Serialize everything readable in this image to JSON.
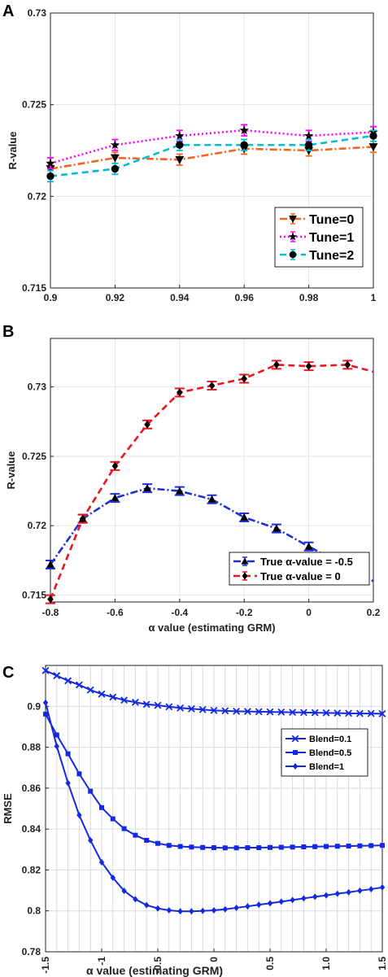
{
  "chart_data": [
    {
      "panel": "A",
      "type": "line",
      "title": "",
      "xlabel": "",
      "ylabel": "R-value",
      "x": [
        0.9,
        0.92,
        0.94,
        0.96,
        0.98,
        1
      ],
      "xlim": [
        0.9,
        1
      ],
      "ylim": [
        0.715,
        0.73
      ],
      "xticks": [
        "0.9",
        "0.92",
        "0.94",
        "0.96",
        "0.98",
        "1"
      ],
      "yticks": [
        "0.715",
        "0.72",
        "0.725",
        "0.73"
      ],
      "grid": true,
      "legend_position": "bottom-right",
      "series": [
        {
          "name": "Tune=0",
          "color": "#f26522",
          "marker": "triangle-down",
          "dash": "dashdot",
          "values": [
            0.7215,
            0.7221,
            0.722,
            0.7226,
            0.7225,
            0.7227
          ],
          "err": [
            0.0003,
            0.0003,
            0.0003,
            0.0003,
            0.0003,
            0.0003
          ]
        },
        {
          "name": "Tune=1",
          "color": "#ff00ff",
          "marker": "star",
          "dash": "dotted",
          "values": [
            0.7218,
            0.7228,
            0.7233,
            0.7236,
            0.7233,
            0.7235
          ],
          "err": [
            0.0003,
            0.0003,
            0.0003,
            0.0003,
            0.0003,
            0.0003
          ]
        },
        {
          "name": "Tune=2",
          "color": "#00bcd4",
          "marker": "circle",
          "dash": "dashed",
          "values": [
            0.7211,
            0.7215,
            0.7228,
            0.7228,
            0.7228,
            0.7233
          ],
          "err": [
            0.0003,
            0.0003,
            0.0003,
            0.0003,
            0.0003,
            0.0003
          ]
        }
      ]
    },
    {
      "panel": "B",
      "type": "line",
      "title": "",
      "xlabel": "α value (estimating GRM)",
      "ylabel": "R-value",
      "xlim": [
        -0.8,
        0.2
      ],
      "ylim": [
        0.7145,
        0.7335
      ],
      "xticks": [
        "-0.8",
        "-0.6",
        "-0.4",
        "-0.2",
        "0",
        "0.2"
      ],
      "xtick_values": [
        -0.8,
        -0.6,
        -0.4,
        -0.2,
        0,
        0.2
      ],
      "yticks": [
        "0.715",
        "0.72",
        "0.725",
        "0.73"
      ],
      "ytick_values": [
        0.715,
        0.72,
        0.725,
        0.73
      ],
      "grid": true,
      "legend_position": "bottom-right",
      "series": [
        {
          "name": "True α-value = -0.5",
          "color": "#1f2fd6",
          "marker": "triangle-up",
          "dash": "dashdot",
          "x": [
            -0.8,
            -0.7,
            -0.6,
            -0.5,
            -0.4,
            -0.3,
            -0.2,
            -0.1,
            0,
            0.2
          ],
          "values": [
            0.7172,
            0.7205,
            0.722,
            0.7227,
            0.7225,
            0.7219,
            0.7206,
            0.7198,
            0.7185,
            0.716
          ],
          "marker_count": 9
        },
        {
          "name": "True α-value = 0",
          "color": "#e8171d",
          "marker": "diamond",
          "dash": "dashed",
          "x": [
            -0.8,
            -0.7,
            -0.6,
            -0.5,
            -0.4,
            -0.3,
            -0.2,
            -0.1,
            0,
            0.12,
            0.2
          ],
          "values": [
            0.7147,
            0.7205,
            0.7243,
            0.7273,
            0.7296,
            0.7301,
            0.7306,
            0.7316,
            0.7315,
            0.7316,
            0.7311
          ],
          "marker_count": 10
        }
      ]
    },
    {
      "panel": "C",
      "type": "line",
      "title": "",
      "xlabel": "α value (estimating GRM)",
      "ylabel": "RMSE",
      "xlim": [
        -1.5,
        1.5
      ],
      "ylim": [
        0.78,
        0.92
      ],
      "xticks": [
        "-1.5",
        "-1",
        "-0.5",
        "0",
        "0.5",
        "1.0",
        "1.5"
      ],
      "xtick_values": [
        -1.5,
        -1,
        -0.5,
        0,
        0.5,
        1,
        1.5
      ],
      "yticks": [
        "0.78",
        "0.8",
        "0.82",
        "0.84",
        "0.86",
        "0.88",
        "0.9"
      ],
      "ytick_values": [
        0.78,
        0.8,
        0.82,
        0.84,
        0.86,
        0.88,
        0.9
      ],
      "grid": true,
      "legend_position": "top-right",
      "series": [
        {
          "name": "Blend=0.1",
          "color": "#1428e0",
          "marker": "x",
          "values": [
            0.9175,
            0.915,
            0.9125,
            0.9105,
            0.908,
            0.906,
            0.9045,
            0.903,
            0.902,
            0.901,
            0.9005,
            0.8998,
            0.8992,
            0.8988,
            0.8984,
            0.898,
            0.8978,
            0.8976,
            0.8975,
            0.8974,
            0.8973,
            0.8972,
            0.8971,
            0.897,
            0.8969,
            0.8968,
            0.8967,
            0.8966,
            0.8965,
            0.8965,
            0.8964
          ]
        },
        {
          "name": "Blend=0.5",
          "color": "#1428e0",
          "marker": "square",
          "values": [
            0.8962,
            0.886,
            0.8768,
            0.867,
            0.8585,
            0.8505,
            0.845,
            0.8402,
            0.837,
            0.8345,
            0.833,
            0.832,
            0.8315,
            0.8312,
            0.831,
            0.8309,
            0.8308,
            0.8308,
            0.8309,
            0.8309,
            0.831,
            0.8311,
            0.8312,
            0.8313,
            0.8314,
            0.8315,
            0.8316,
            0.8317,
            0.8318,
            0.8319,
            0.832
          ]
        },
        {
          "name": "Blend=1",
          "color": "#1428e0",
          "marker": "diamond",
          "values": [
            0.9018,
            0.8805,
            0.8625,
            0.8468,
            0.8345,
            0.8238,
            0.8162,
            0.8098,
            0.8057,
            0.8028,
            0.8012,
            0.8003,
            0.7998,
            0.7998,
            0.8,
            0.8003,
            0.8008,
            0.8015,
            0.8022,
            0.803,
            0.8037,
            0.8045,
            0.8053,
            0.8061,
            0.8069,
            0.8076,
            0.8084,
            0.8091,
            0.8099,
            0.8106,
            0.8115
          ]
        }
      ]
    }
  ]
}
